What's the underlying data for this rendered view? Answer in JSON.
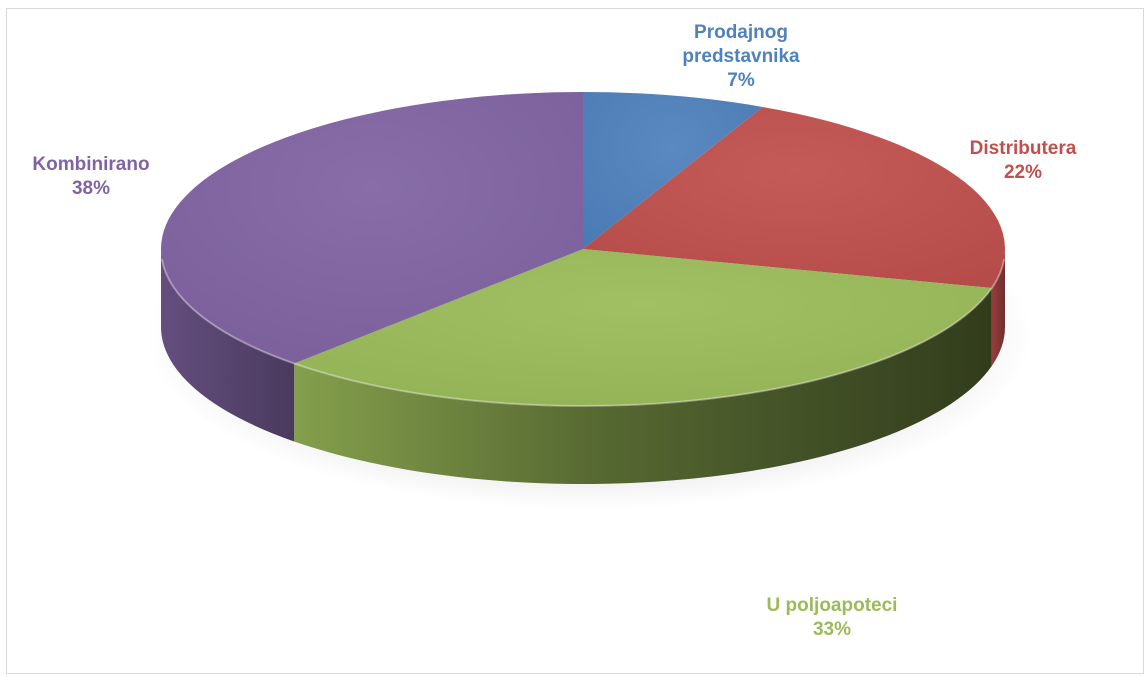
{
  "chart_data": {
    "type": "pie",
    "style": "3d",
    "title": "",
    "legend": "none",
    "slices": [
      {
        "label_lines": [
          "Prodajnog",
          "predstavnika"
        ],
        "value": 7,
        "value_label": "7%",
        "color": "#4f81bd"
      },
      {
        "label_lines": [
          "Distributera"
        ],
        "value": 22,
        "value_label": "22%",
        "color": "#c0504d"
      },
      {
        "label_lines": [
          "U poljoapoteci"
        ],
        "value": 33,
        "value_label": "33%",
        "color": "#9bbb59"
      },
      {
        "label_lines": [
          "Kombinirano"
        ],
        "value": 38,
        "value_label": "38%",
        "color": "#8064a2"
      }
    ]
  }
}
